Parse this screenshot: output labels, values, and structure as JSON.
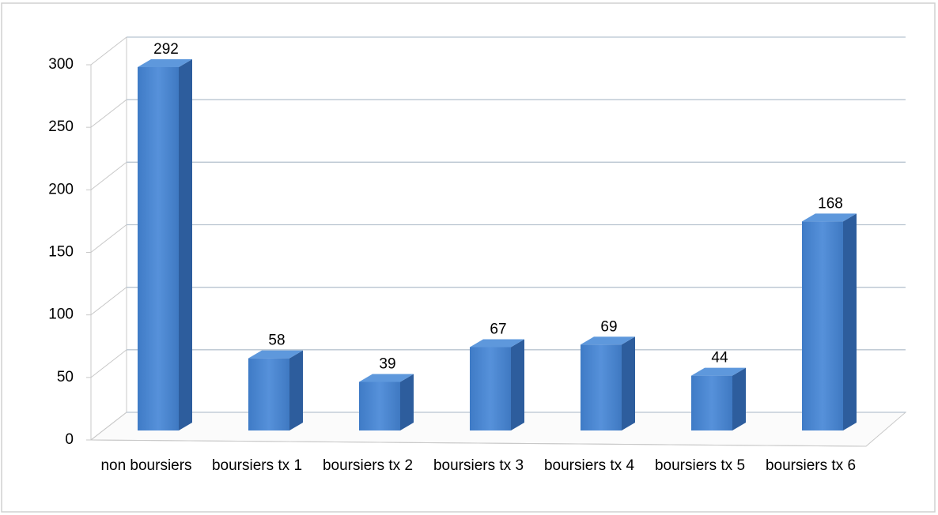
{
  "chart_data": {
    "type": "bar3d",
    "categories": [
      "non boursiers",
      "boursiers tx 1",
      "boursiers tx 2",
      "boursiers tx 3",
      "boursiers tx 4",
      "boursiers tx 5",
      "boursiers tx 6"
    ],
    "values": [
      292,
      58,
      39,
      67,
      69,
      44,
      168
    ],
    "color": "#4a86d0",
    "ylim": [
      0,
      300
    ],
    "yticks": [
      0,
      50,
      100,
      150,
      200,
      250,
      300
    ],
    "grid": true
  }
}
